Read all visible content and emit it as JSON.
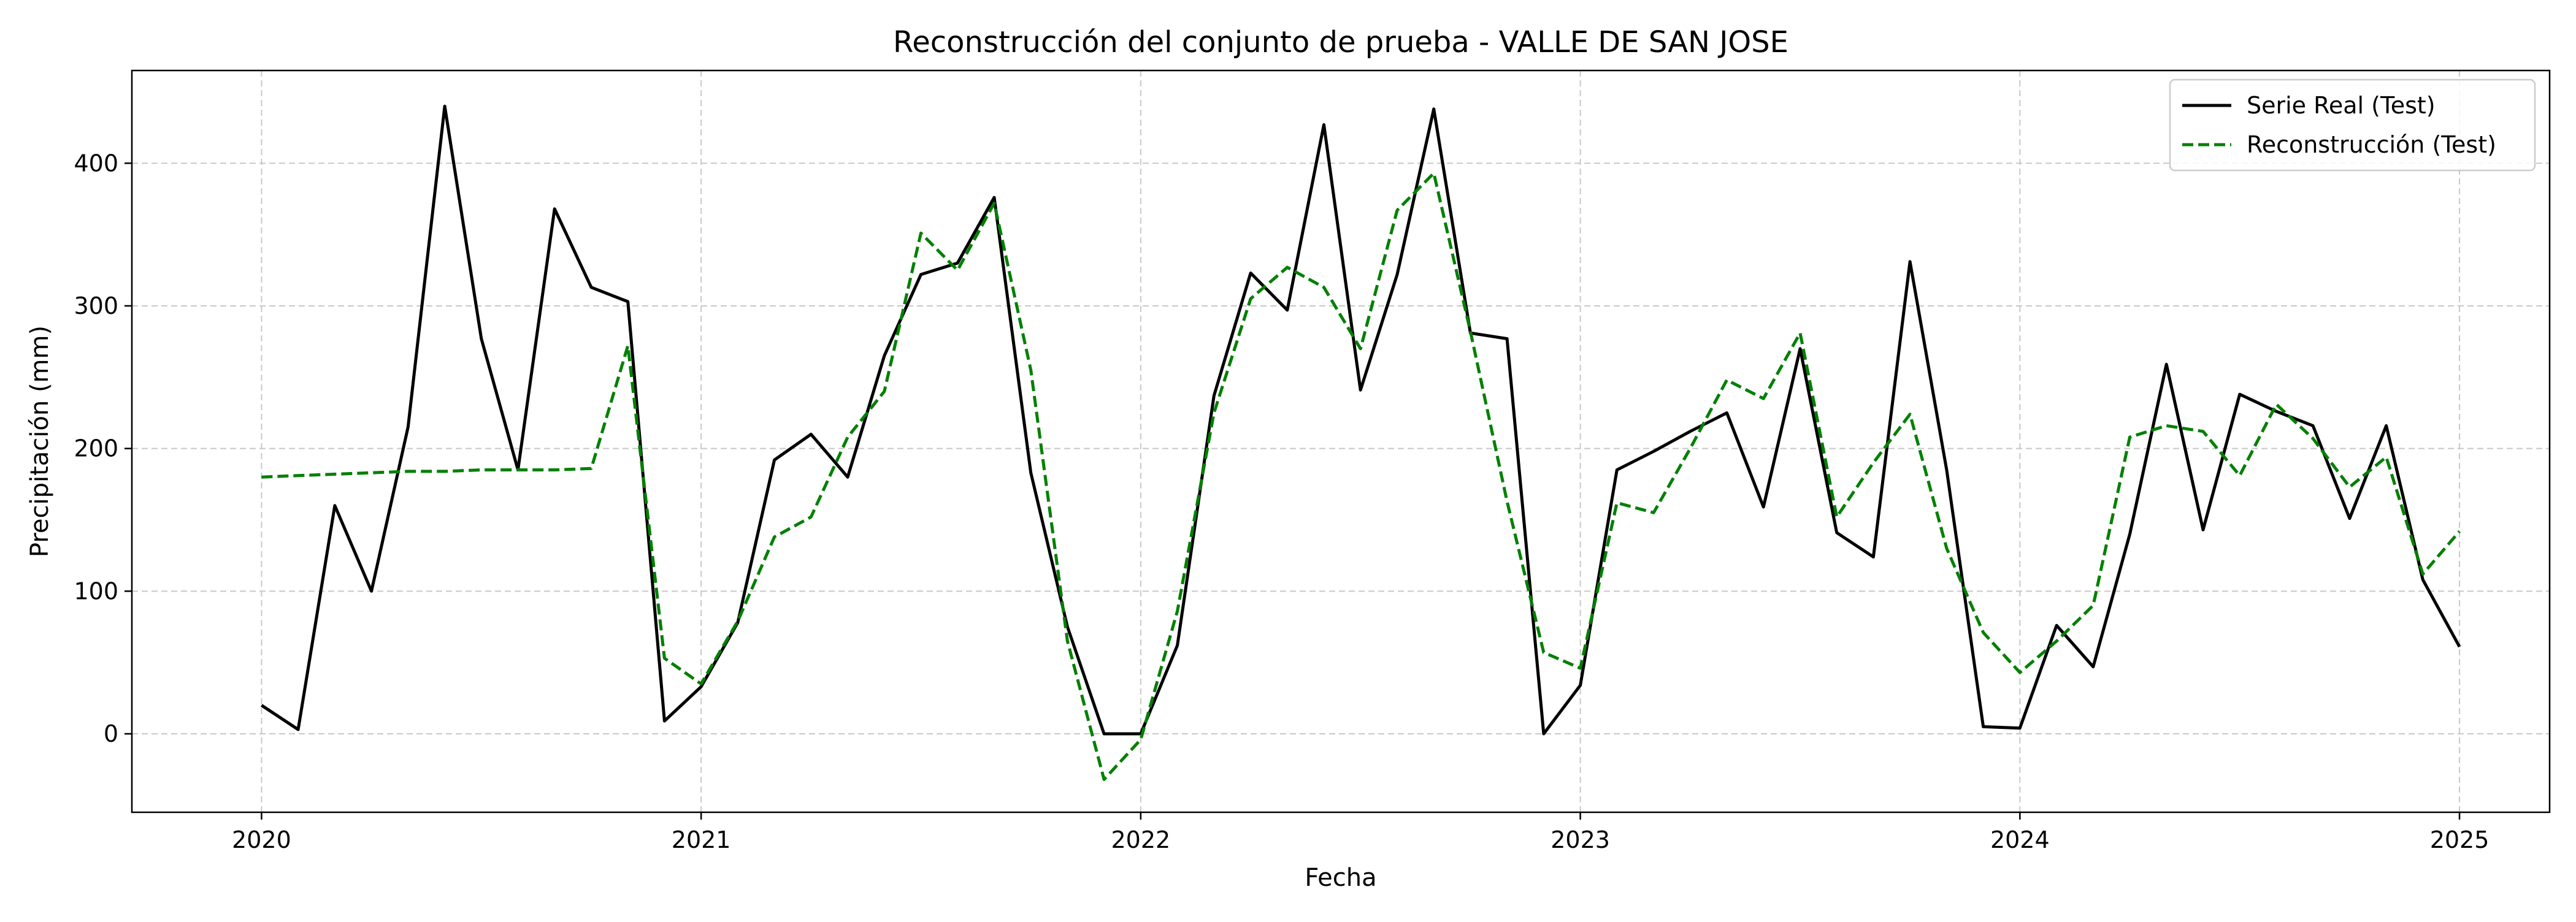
{
  "chart_data": {
    "type": "line",
    "title": "Reconstrucción del conjunto de prueba - VALLE DE SAN JOSE",
    "xlabel": "Fecha",
    "ylabel": "Precipitación (mm)",
    "x_tick_labels": [
      "2020",
      "2021",
      "2022",
      "2023",
      "2024",
      "2025"
    ],
    "y_tick_labels": [
      "0",
      "100",
      "200",
      "300",
      "400"
    ],
    "ylim": [
      -55,
      465
    ],
    "xlim": [
      "2019-09-15",
      "2025-03-15"
    ],
    "grid": true,
    "legend_position": "top-right",
    "x": [
      "2020-01",
      "2020-02",
      "2020-03",
      "2020-04",
      "2020-05",
      "2020-06",
      "2020-07",
      "2020-08",
      "2020-09",
      "2020-10",
      "2020-11",
      "2020-12",
      "2021-01",
      "2021-02",
      "2021-03",
      "2021-04",
      "2021-05",
      "2021-06",
      "2021-07",
      "2021-08",
      "2021-09",
      "2021-10",
      "2021-11",
      "2021-12",
      "2022-01",
      "2022-02",
      "2022-03",
      "2022-04",
      "2022-05",
      "2022-06",
      "2022-07",
      "2022-08",
      "2022-09",
      "2022-10",
      "2022-11",
      "2022-12",
      "2023-01",
      "2023-02",
      "2023-03",
      "2023-04",
      "2023-05",
      "2023-06",
      "2023-07",
      "2023-08",
      "2023-09",
      "2023-10",
      "2023-11",
      "2023-12",
      "2024-01",
      "2024-02",
      "2024-03",
      "2024-04",
      "2024-05",
      "2024-06",
      "2024-07",
      "2024-08",
      "2024-09",
      "2024-10",
      "2024-11",
      "2024-12",
      "2025-01"
    ],
    "series": [
      {
        "name": "Serie Real (Test)",
        "color": "#000000",
        "style": "solid",
        "values": [
          20,
          3,
          160,
          100,
          215,
          440,
          277,
          185,
          368,
          313,
          303,
          9,
          33,
          78,
          192,
          210,
          180,
          265,
          322,
          330,
          376,
          183,
          75,
          0,
          0,
          62,
          237,
          323,
          297,
          427,
          241,
          322,
          438,
          281,
          277,
          0,
          34,
          185,
          198,
          212,
          225,
          159,
          270,
          141,
          124,
          331,
          185,
          5,
          4,
          76,
          47,
          140,
          259,
          143,
          238,
          226,
          216,
          151,
          216,
          108,
          61
        ]
      },
      {
        "name": "Reconstrucción (Test)",
        "color": "#008000",
        "style": "dashed",
        "values": [
          180,
          181,
          182,
          183,
          184,
          184,
          185,
          185,
          185,
          186,
          272,
          53,
          35,
          79,
          138,
          152,
          208,
          240,
          351,
          325,
          372,
          255,
          65,
          -32,
          -4,
          86,
          225,
          305,
          327,
          313,
          270,
          367,
          393,
          282,
          163,
          57,
          46,
          162,
          155,
          200,
          248,
          235,
          281,
          152,
          190,
          224,
          130,
          71,
          43,
          65,
          90,
          208,
          216,
          212,
          181,
          231,
          207,
          173,
          194,
          112,
          142
        ]
      }
    ]
  }
}
